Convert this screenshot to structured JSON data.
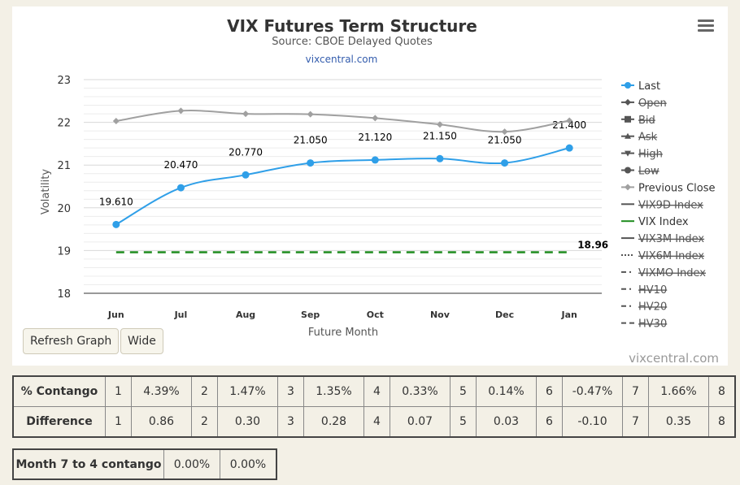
{
  "chart_data": {
    "type": "line",
    "title": "VIX Futures Term Structure",
    "subtitle": "Source: CBOE Delayed Quotes",
    "link": "vixcentral.com",
    "xlabel": "Future Month",
    "ylabel": "Volatility",
    "categories": [
      "Jun",
      "Jul",
      "Aug",
      "Sep",
      "Oct",
      "Nov",
      "Dec",
      "Jan"
    ],
    "ylim": [
      18,
      23
    ],
    "yticks": [
      "18",
      "19",
      "20",
      "21",
      "22",
      "23"
    ],
    "grid": true,
    "legend_position": "right",
    "series": [
      {
        "name": "Last",
        "values": [
          19.61,
          20.47,
          20.77,
          21.05,
          21.12,
          21.15,
          21.05,
          21.4
        ],
        "labels": [
          "19.610",
          "20.470",
          "20.770",
          "21.050",
          "21.120",
          "21.150",
          "21.050",
          "21.400"
        ],
        "color": "#2f9fe8",
        "visible": true
      },
      {
        "name": "Previous Close",
        "values": [
          22.03,
          22.27,
          22.2,
          22.19,
          22.1,
          21.95,
          21.78,
          22.04
        ],
        "color": "#a0a0a0",
        "visible": true
      },
      {
        "name": "VIX Index",
        "values": [
          18.96,
          18.96,
          18.96,
          18.96,
          18.96,
          18.96,
          18.96,
          18.96
        ],
        "end_label": "18.96",
        "color": "#1e8c1e",
        "visible": true
      }
    ],
    "legend": [
      {
        "name": "Last",
        "symbol": "circle",
        "color": "#2f9fe8",
        "visible": true
      },
      {
        "name": "Open",
        "symbol": "diamond",
        "color": "#555555",
        "visible": false
      },
      {
        "name": "Bid",
        "symbol": "square",
        "color": "#555555",
        "visible": false
      },
      {
        "name": "Ask",
        "symbol": "triangle",
        "color": "#555555",
        "visible": false
      },
      {
        "name": "High",
        "symbol": "triangle-down",
        "color": "#555555",
        "visible": false
      },
      {
        "name": "Low",
        "symbol": "circle",
        "color": "#555555",
        "visible": false
      },
      {
        "name": "Previous Close",
        "symbol": "diamond",
        "color": "#a0a0a0",
        "visible": true
      },
      {
        "name": "VIX9D Index",
        "symbol": "line",
        "color": "#555555",
        "visible": false
      },
      {
        "name": "VIX Index",
        "symbol": "line",
        "color": "#1e8c1e",
        "visible": true
      },
      {
        "name": "VIX3M Index",
        "symbol": "line",
        "color": "#555555",
        "visible": false
      },
      {
        "name": "VIX6M Index",
        "symbol": "dotted",
        "color": "#555555",
        "visible": false
      },
      {
        "name": "VIXMO Index",
        "symbol": "dashdot",
        "color": "#555555",
        "visible": false
      },
      {
        "name": "HV10",
        "symbol": "dashdot",
        "color": "#555555",
        "visible": false
      },
      {
        "name": "HV20",
        "symbol": "dashdot",
        "color": "#555555",
        "visible": false
      },
      {
        "name": "HV30",
        "symbol": "dashed",
        "color": "#555555",
        "visible": false
      }
    ],
    "credit": "vixcentral.com"
  },
  "buttons": {
    "refresh": "Refresh Graph",
    "wide": "Wide"
  },
  "contango_table": {
    "rows": [
      {
        "label": "% Contango",
        "cells": [
          "1",
          "4.39%",
          "2",
          "1.47%",
          "3",
          "1.35%",
          "4",
          "0.33%",
          "5",
          "0.14%",
          "6",
          "-0.47%",
          "7",
          "1.66%",
          "8"
        ]
      },
      {
        "label": "Difference",
        "cells": [
          "1",
          "0.86",
          "2",
          "0.30",
          "3",
          "0.28",
          "4",
          "0.07",
          "5",
          "0.03",
          "6",
          "-0.10",
          "7",
          "0.35",
          "8"
        ]
      }
    ]
  },
  "month_table": {
    "label": "Month 7 to 4 contango",
    "values": [
      "0.00%",
      "0.00%"
    ]
  }
}
